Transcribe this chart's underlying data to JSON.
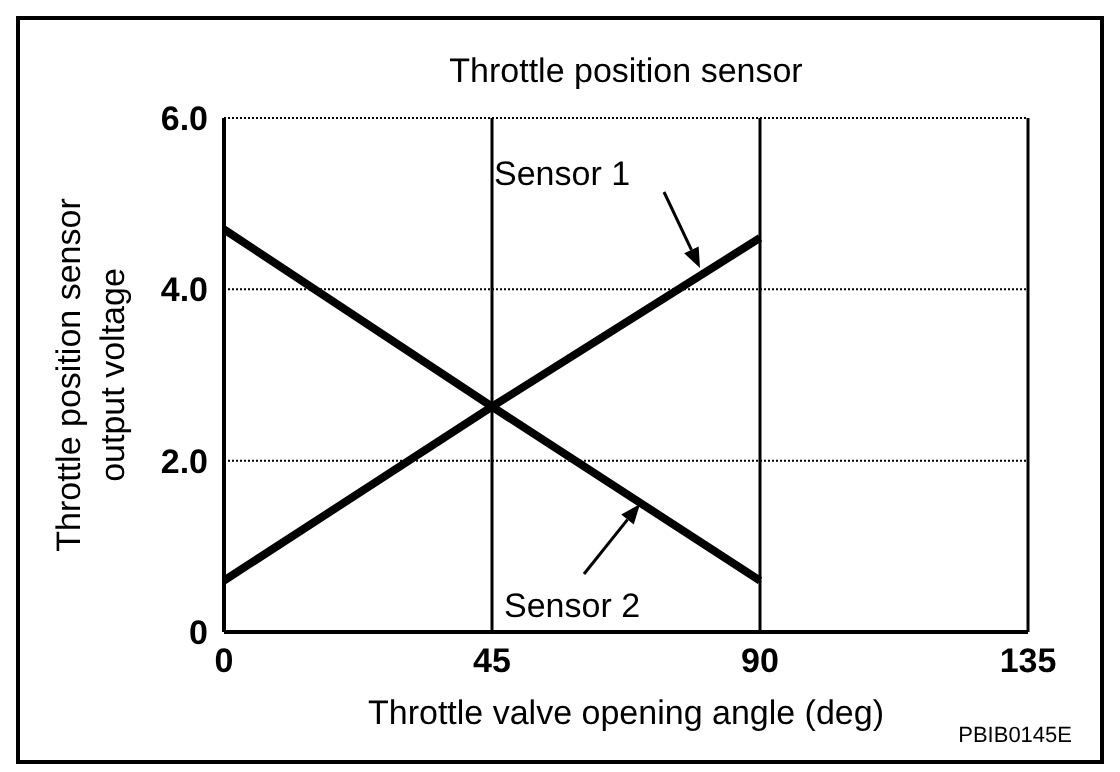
{
  "chart_data": {
    "type": "line",
    "title": "Throttle position sensor",
    "xlabel": "Throttle valve opening angle (deg)",
    "ylabel": "Throttle position sensor output voltage",
    "x": [
      0,
      45,
      90
    ],
    "series": [
      {
        "name": "Sensor 1",
        "color": "#000000",
        "values": [
          0.6,
          2.63,
          4.6
        ]
      },
      {
        "name": "Sensor 2",
        "color": "#000000",
        "values": [
          4.7,
          2.63,
          0.6
        ]
      }
    ],
    "xlim": [
      0,
      135
    ],
    "xticks": [
      0,
      45,
      90,
      135
    ],
    "ylim": [
      0,
      6
    ],
    "yticks": [
      0,
      {
        "value": 2,
        "label": "2.0"
      },
      {
        "value": 4,
        "label": "4.0"
      },
      {
        "value": 6,
        "label": "6.0"
      }
    ],
    "grid": true,
    "marker": "none",
    "line_style": "solid",
    "annotations": [
      "PBIB0145E"
    ]
  }
}
